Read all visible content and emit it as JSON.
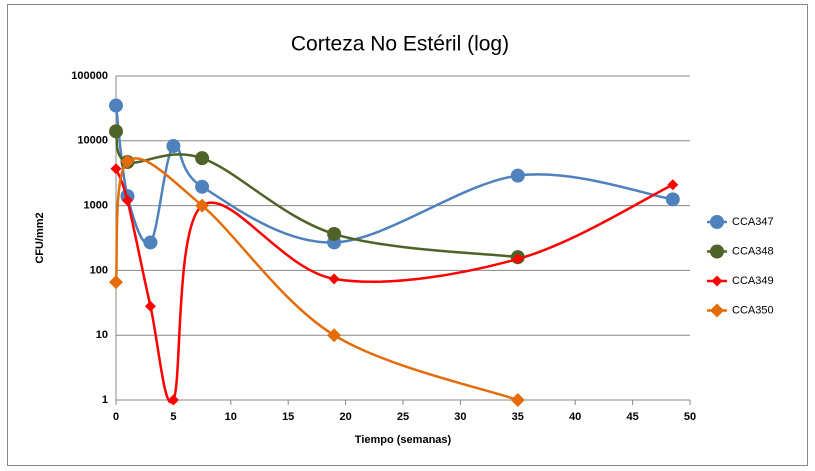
{
  "chart_data": {
    "type": "line",
    "title": "Corteza No Estéril  (log)",
    "xlabel": "Tiempo (semanas)",
    "ylabel": "CFU/mm2",
    "xlim": [
      0,
      50
    ],
    "xticks": [
      0,
      5,
      10,
      15,
      20,
      25,
      30,
      35,
      40,
      45,
      50
    ],
    "ylim": [
      1,
      100000
    ],
    "yticks": [
      1,
      10,
      100,
      1000,
      10000,
      100000
    ],
    "ylog": true,
    "grid": true,
    "smooth": true,
    "legend": "right",
    "series": [
      {
        "name": "CCA347",
        "color": "#4f81bd",
        "marker": "circle",
        "x": [
          0,
          1,
          3,
          5,
          7.5,
          19,
          35,
          48.5
        ],
        "values": [
          35000,
          1400,
          270,
          8300,
          1950,
          270,
          2900,
          1250
        ]
      },
      {
        "name": "CCA348",
        "color": "#4f6228",
        "marker": "circle",
        "x": [
          0,
          1,
          7.5,
          19,
          35
        ],
        "values": [
          14000,
          4700,
          5400,
          365,
          160
        ]
      },
      {
        "name": "CCA349",
        "color": "#ff0000",
        "marker": "diamond-small",
        "x": [
          0,
          1,
          3,
          5,
          7.5,
          19,
          35,
          48.5
        ],
        "values": [
          3700,
          1200,
          28,
          1,
          1000,
          74,
          150,
          2100
        ]
      },
      {
        "name": "CCA350",
        "color": "#e46c0a",
        "marker": "diamond",
        "x": [
          0,
          1,
          7.5,
          19,
          35
        ],
        "values": [
          66,
          4800,
          1000,
          10,
          1
        ]
      }
    ]
  }
}
